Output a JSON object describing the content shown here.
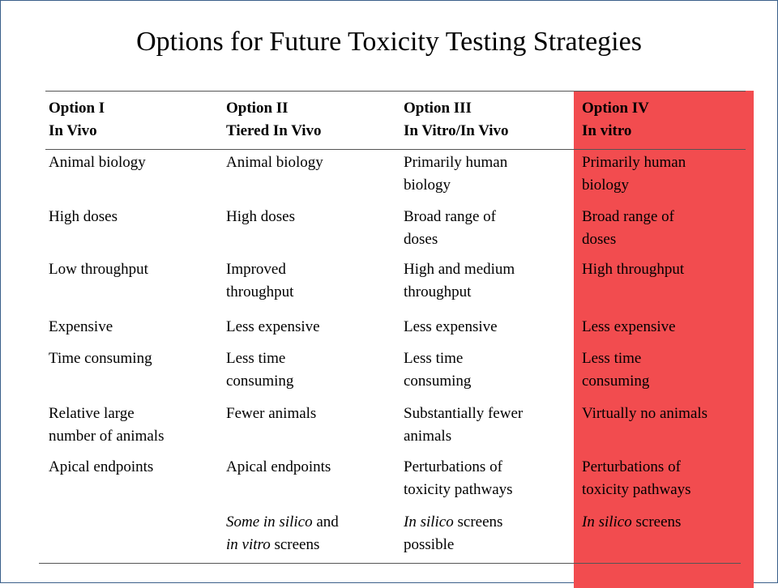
{
  "slide": {
    "title": "Options for Future Toxicity Testing Strategies"
  },
  "table": {
    "headers": [
      {
        "line1": "Option I",
        "line2": "In Vivo"
      },
      {
        "line1": "Option II",
        "line2": "Tiered In Vivo"
      },
      {
        "line1": "Option III",
        "line2": "In Vitro/In Vivo"
      },
      {
        "line1": "Option IV",
        "line2": "In vitro"
      }
    ],
    "rows": [
      [
        {
          "line1": "Animal biology",
          "line2": ""
        },
        {
          "line1": "Animal biology",
          "line2": ""
        },
        {
          "line1": "Primarily human",
          "line2": "biology"
        },
        {
          "line1": "Primarily human",
          "line2": "biology"
        }
      ],
      [
        {
          "line1": "High doses",
          "line2": ""
        },
        {
          "line1": "High doses",
          "line2": ""
        },
        {
          "line1": "Broad range of",
          "line2": "doses"
        },
        {
          "line1": "Broad range of",
          "line2": "doses"
        }
      ],
      [
        {
          "line1": "Low throughput",
          "line2": ""
        },
        {
          "line1": "Improved",
          "line2": "throughput"
        },
        {
          "line1": "High and medium",
          "line2": "throughput"
        },
        {
          "line1": "High throughput",
          "line2": ""
        }
      ],
      [
        {
          "line1": "Expensive",
          "line2": ""
        },
        {
          "line1": "Less expensive",
          "line2": ""
        },
        {
          "line1": "Less expensive",
          "line2": ""
        },
        {
          "line1": "Less expensive",
          "line2": ""
        }
      ],
      [
        {
          "line1": "Time consuming",
          "line2": ""
        },
        {
          "line1": "Less time",
          "line2": "consuming"
        },
        {
          "line1": "Less time",
          "line2": "consuming"
        },
        {
          "line1": "Less time",
          "line2": "consuming"
        }
      ],
      [
        {
          "line1": "Relative large",
          "line2": "number of animals"
        },
        {
          "line1": "Fewer animals",
          "line2": ""
        },
        {
          "line1": "Substantially fewer",
          "line2": "animals"
        },
        {
          "line1": "Virtually no animals",
          "line2": ""
        }
      ],
      [
        {
          "line1": "Apical endpoints",
          "line2": ""
        },
        {
          "line1": "Apical endpoints",
          "line2": ""
        },
        {
          "line1": "Perturbations of",
          "line2": "toxicity pathways"
        },
        {
          "line1": "Perturbations of",
          "line2": "toxicity pathways"
        }
      ]
    ],
    "last_row": {
      "col2": {
        "l1_italic": "Some in silico",
        "l1_rest": " and",
        "l2_italic": "in vitro",
        "l2_rest": " screens"
      },
      "col3": {
        "l1_italic": "In silico",
        "l1_rest": " screens",
        "l2": "possible"
      },
      "col4": {
        "l1_italic": "In silico",
        "l1_rest": " screens"
      }
    },
    "highlight_color": "#f24c4f"
  }
}
